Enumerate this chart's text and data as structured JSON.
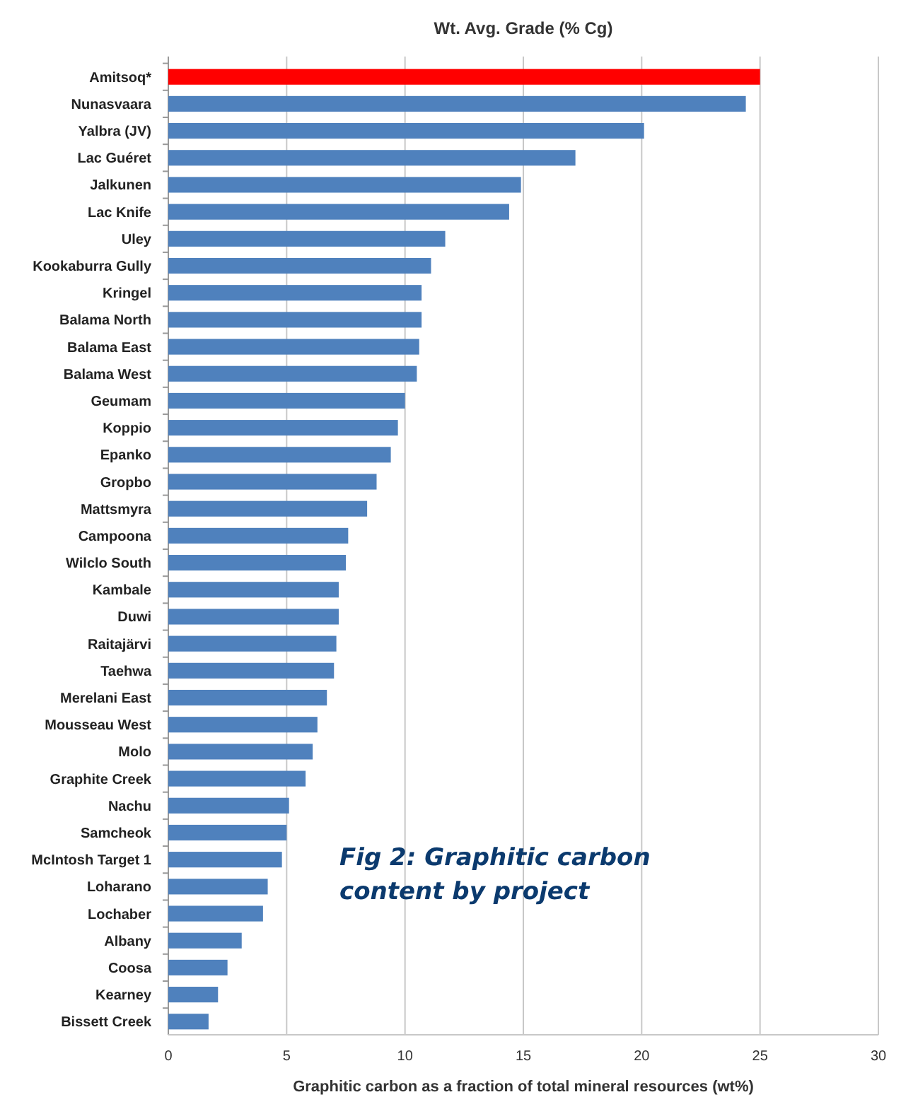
{
  "chart_data": {
    "type": "bar",
    "orientation": "horizontal",
    "title": "Wt. Avg. Grade (% Cg)",
    "xlabel": "Graphitic carbon as a fraction of total mineral resources (wt%)",
    "categories": [
      "Amitsoq*",
      "Nunasvaara",
      "Yalbra (JV)",
      "Lac Guéret",
      "Jalkunen",
      "Lac Knife",
      "Uley",
      "Kookaburra Gully",
      "Kringel",
      "Balama North",
      "Balama East",
      "Balama West",
      "Geumam",
      "Koppio",
      "Epanko",
      "Gropbo",
      "Mattsmyra",
      "Campoona",
      "Wilclo South",
      "Kambale",
      "Duwi",
      "Raitajärvi",
      "Taehwa",
      "Merelani East",
      "Mousseau West",
      "Molo",
      "Graphite Creek",
      "Nachu",
      "Samcheok",
      "McIntosh Target 1",
      "Loharano",
      "Lochaber",
      "Albany",
      "Coosa",
      "Kearney",
      "Bissett Creek"
    ],
    "values": [
      25.0,
      24.4,
      20.1,
      17.2,
      14.9,
      14.4,
      11.7,
      11.1,
      10.7,
      10.7,
      10.6,
      10.5,
      10.0,
      9.7,
      9.4,
      8.8,
      8.4,
      7.6,
      7.5,
      7.2,
      7.2,
      7.1,
      7.0,
      6.7,
      6.3,
      6.1,
      5.8,
      5.1,
      5.0,
      4.8,
      4.2,
      4.0,
      3.1,
      2.5,
      2.1,
      1.7
    ],
    "colors": [
      "#ff0000",
      "#4f81bd",
      "#4f81bd",
      "#4f81bd",
      "#4f81bd",
      "#4f81bd",
      "#4f81bd",
      "#4f81bd",
      "#4f81bd",
      "#4f81bd",
      "#4f81bd",
      "#4f81bd",
      "#4f81bd",
      "#4f81bd",
      "#4f81bd",
      "#4f81bd",
      "#4f81bd",
      "#4f81bd",
      "#4f81bd",
      "#4f81bd",
      "#4f81bd",
      "#4f81bd",
      "#4f81bd",
      "#4f81bd",
      "#4f81bd",
      "#4f81bd",
      "#4f81bd",
      "#4f81bd",
      "#4f81bd",
      "#4f81bd",
      "#4f81bd",
      "#4f81bd",
      "#4f81bd",
      "#4f81bd",
      "#4f81bd",
      "#4f81bd"
    ],
    "xlim": [
      0,
      30
    ],
    "xticks": [
      0,
      5,
      10,
      15,
      20,
      25,
      30
    ],
    "grid": "x",
    "annotations": [
      "Fig 2: Graphitic carbon content by project"
    ]
  }
}
